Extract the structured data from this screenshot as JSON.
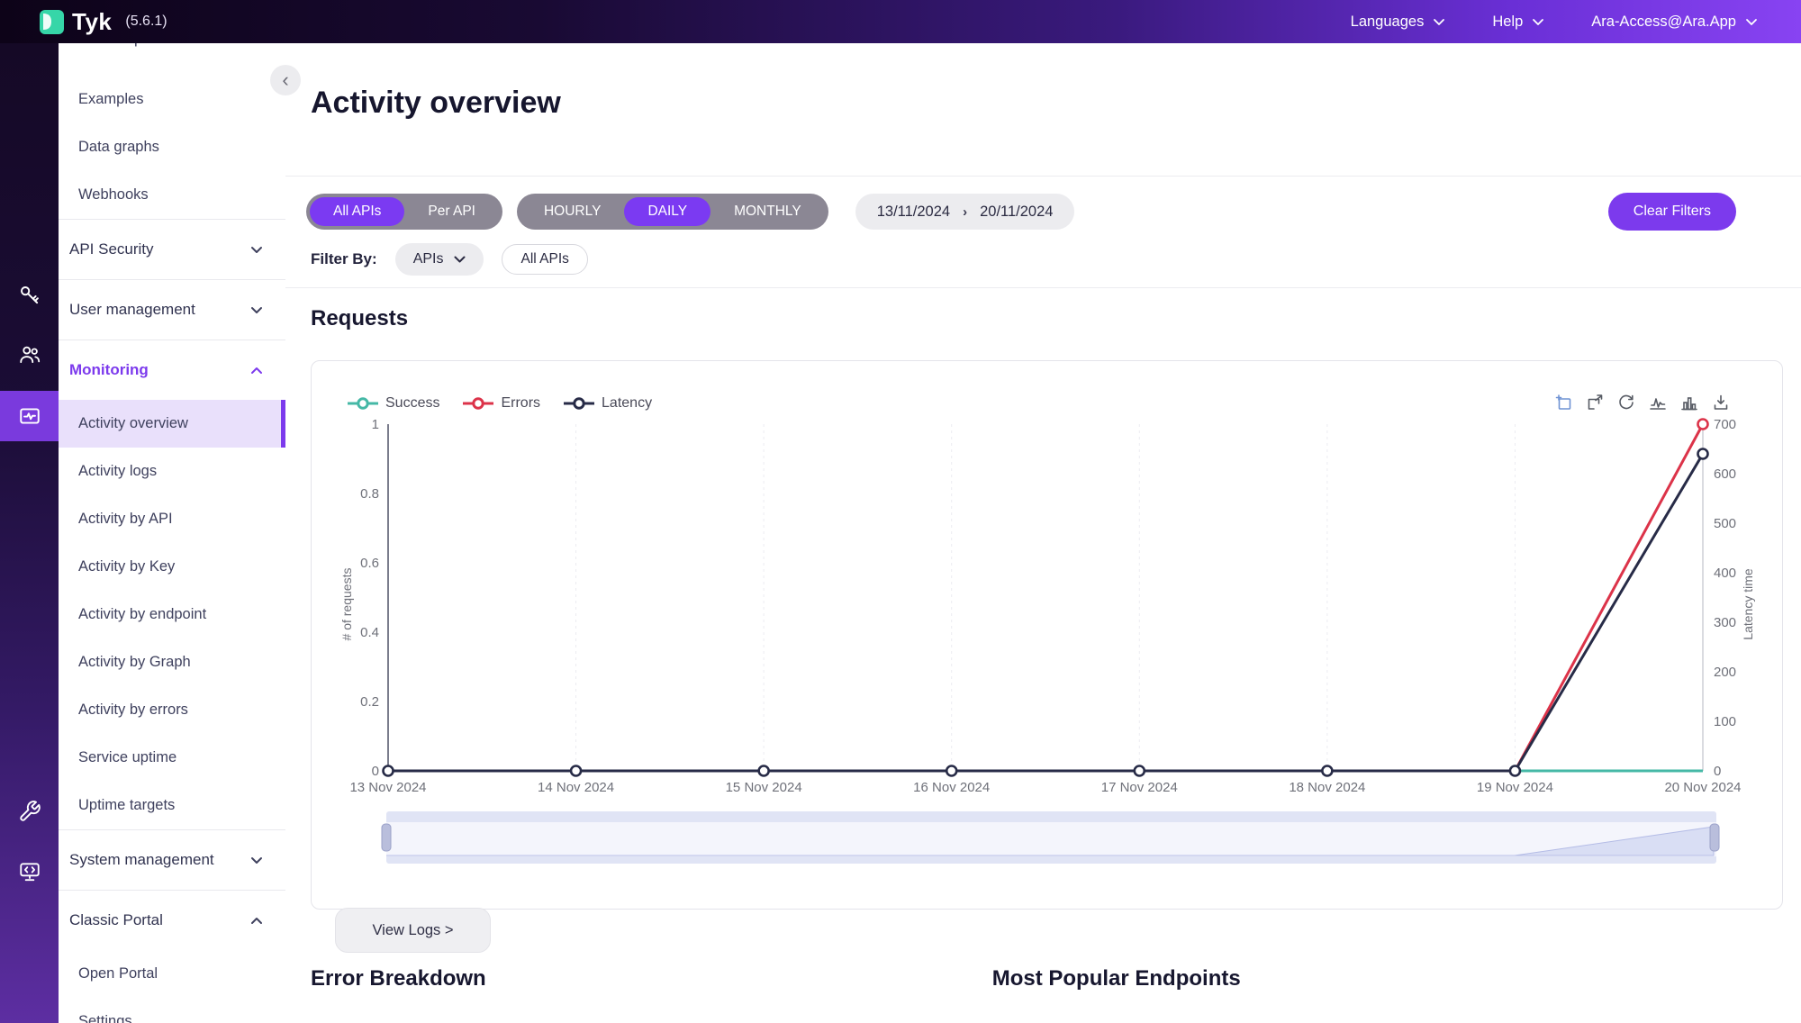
{
  "topbar": {
    "brand": "Tyk",
    "version": "(5.6.1)",
    "menus": [
      {
        "label": "Languages",
        "has_dropdown": true
      },
      {
        "label": "Help",
        "has_dropdown": true
      },
      {
        "label": "Ara-Access@Ara.App",
        "has_dropdown": true
      }
    ]
  },
  "sidebar": {
    "collapse_icon": "‹",
    "rail": [
      {
        "icon": "key-icon",
        "section": "API Security",
        "active": false
      },
      {
        "icon": "users-icon",
        "section": "User management",
        "active": false
      },
      {
        "icon": "monitor-pulse-icon",
        "section": "Monitoring",
        "active": true
      },
      {
        "icon": "wrench-icon",
        "section": "System management",
        "active": false
      },
      {
        "icon": "portal-monitor-icon",
        "section": "Classic Portal",
        "active": false
      }
    ],
    "items": [
      {
        "label": "API Templates",
        "type": "link",
        "clipped": true
      },
      {
        "label": "Examples",
        "type": "link"
      },
      {
        "label": "Data graphs",
        "type": "link"
      },
      {
        "label": "Webhooks",
        "type": "link"
      },
      {
        "label": "API Security",
        "type": "section",
        "state": "collapsed"
      },
      {
        "label": "User management",
        "type": "section",
        "state": "collapsed"
      },
      {
        "label": "Monitoring",
        "type": "section",
        "state": "expanded",
        "active": true
      },
      {
        "label": "Activity overview",
        "type": "sub",
        "selected": true
      },
      {
        "label": "Activity logs",
        "type": "sub"
      },
      {
        "label": "Activity by API",
        "type": "sub"
      },
      {
        "label": "Activity by Key",
        "type": "sub"
      },
      {
        "label": "Activity by endpoint",
        "type": "sub"
      },
      {
        "label": "Activity by Graph",
        "type": "sub"
      },
      {
        "label": "Activity by errors",
        "type": "sub"
      },
      {
        "label": "Service uptime",
        "type": "sub"
      },
      {
        "label": "Uptime targets",
        "type": "sub"
      },
      {
        "label": "System management",
        "type": "section",
        "state": "collapsed"
      },
      {
        "label": "Classic Portal",
        "type": "section",
        "state": "expanded"
      },
      {
        "label": "Open Portal",
        "type": "sub"
      },
      {
        "label": "Settings",
        "type": "sub"
      }
    ]
  },
  "header": {
    "title": "Activity overview"
  },
  "filters": {
    "api_scope": {
      "options": [
        "All APIs",
        "Per API"
      ],
      "active": "All APIs"
    },
    "granularity": {
      "options": [
        "HOURLY",
        "DAILY",
        "MONTHLY"
      ],
      "active": "DAILY"
    },
    "date_from": "13/11/2024",
    "date_separator": "›",
    "date_to": "20/11/2024",
    "clear_button": "Clear Filters",
    "filter_by_label": "Filter By:",
    "filter_type_dropdown": "APIs",
    "filter_value_chip": "All APIs"
  },
  "requests": {
    "title": "Requests",
    "view_logs_button": "View Logs >"
  },
  "chart_data": {
    "type": "line",
    "x": [
      "13 Nov 2024",
      "14 Nov 2024",
      "15 Nov 2024",
      "16 Nov 2024",
      "17 Nov 2024",
      "18 Nov 2024",
      "19 Nov 2024",
      "20 Nov 2024"
    ],
    "series": [
      {
        "name": "Success",
        "color": "#45b8a6",
        "axis": "left",
        "values": [
          0,
          0,
          0,
          0,
          0,
          0,
          0,
          0
        ]
      },
      {
        "name": "Errors",
        "color": "#dc3349",
        "axis": "left",
        "values": [
          0,
          0,
          0,
          0,
          0,
          0,
          0,
          1
        ]
      },
      {
        "name": "Latency",
        "color": "#272b47",
        "axis": "right",
        "values": [
          0,
          0,
          0,
          0,
          0,
          0,
          0,
          640
        ]
      }
    ],
    "left_axis": {
      "name": "# of requests",
      "range": [
        0,
        1
      ],
      "ticks": [
        0,
        0.2,
        0.4,
        0.6,
        0.8,
        1
      ]
    },
    "right_axis": {
      "name": "Latency time",
      "range": [
        0,
        700
      ],
      "ticks": [
        0,
        100,
        200,
        300,
        400,
        500,
        600,
        700
      ]
    },
    "legend": [
      "Success",
      "Errors",
      "Latency"
    ],
    "legend_position": "top-left",
    "toolbox_icons": [
      "zoom-select-icon",
      "zoom-reset-icon",
      "restore-icon",
      "line-chart-icon",
      "bar-chart-icon",
      "save-image-icon"
    ],
    "has_datazoom_slider": true,
    "grid": false
  },
  "bottom_sections": [
    {
      "title": "Error Breakdown"
    },
    {
      "title": "Most Popular Endpoints"
    }
  ],
  "colors": {
    "accent": "#7b3af2",
    "success": "#45b8a6",
    "error": "#dc3349",
    "latency": "#272b47",
    "brand_green": "#36d6a8",
    "axis_label": "#6e7079"
  }
}
